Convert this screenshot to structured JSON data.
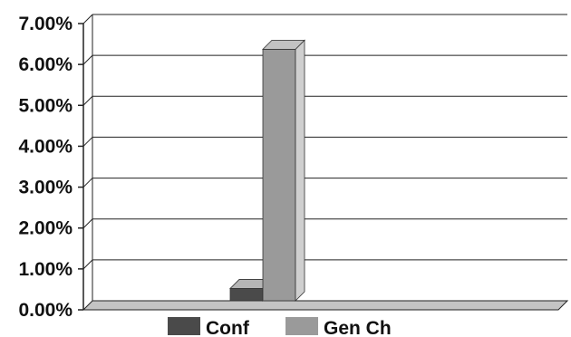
{
  "chart_data": {
    "type": "bar",
    "title": "",
    "xlabel": "",
    "ylabel": "",
    "ylim": [
      0,
      7
    ],
    "y_ticks": [
      {
        "value": 0,
        "label": "0.00%"
      },
      {
        "value": 1,
        "label": "1.00%"
      },
      {
        "value": 2,
        "label": "2.00%"
      },
      {
        "value": 3,
        "label": "3.00%"
      },
      {
        "value": 4,
        "label": "4.00%"
      },
      {
        "value": 5,
        "label": "5.00%"
      },
      {
        "value": 6,
        "label": "6.00%"
      },
      {
        "value": 7,
        "label": "7.00%"
      }
    ],
    "grid": true,
    "style": "3d",
    "legend_position": "bottom",
    "series": [
      {
        "name": "Conf",
        "values": [
          0.3
        ],
        "color": "#4a4a4a"
      },
      {
        "name": "Gen Ch",
        "values": [
          6.15
        ],
        "color": "#9a9a9a"
      }
    ]
  }
}
